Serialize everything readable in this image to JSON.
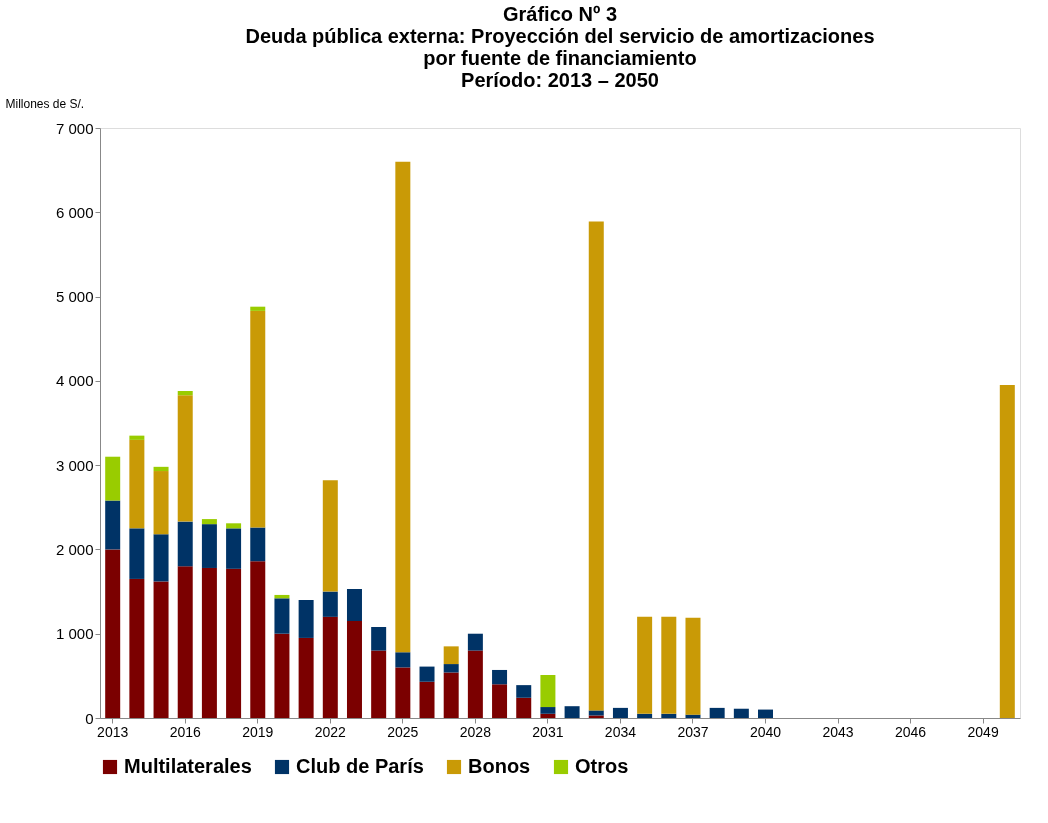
{
  "chart_data": {
    "type": "bar",
    "stacked": true,
    "title": "Gráfico Nº 3\nDeuda pública externa: Proyección del servicio de amortizaciones\npor fuente de financiamiento\nPeríodo: 2013 – 2050",
    "ylabel": "Millones de S/.",
    "categories": [
      "2013",
      null,
      null,
      "2016",
      null,
      null,
      "2019",
      null,
      null,
      "2022",
      null,
      null,
      "2025",
      null,
      null,
      "2028",
      null,
      null,
      "2031",
      null,
      null,
      "2034",
      null,
      null,
      "2037",
      null,
      null,
      "2040",
      null,
      null,
      "2043",
      null,
      null,
      "2046",
      null,
      null,
      "2049",
      null
    ],
    "series": [
      {
        "name": "Multilaterales",
        "color": "#7b0000",
        "values": [
          2000,
          1650,
          1620,
          1800,
          1780,
          1770,
          1860,
          1000,
          950,
          1200,
          1150,
          800,
          600,
          430,
          540,
          800,
          400,
          240,
          50,
          null,
          30,
          null,
          null,
          null,
          null,
          null,
          null,
          null,
          null,
          null,
          null,
          null,
          null,
          null,
          null,
          null,
          null,
          null
        ]
      },
      {
        "name": "Club de París",
        "color": "#003366",
        "values": [
          580,
          600,
          560,
          530,
          520,
          480,
          400,
          420,
          450,
          300,
          380,
          280,
          180,
          180,
          100,
          200,
          170,
          150,
          80,
          140,
          60,
          120,
          50,
          50,
          40,
          120,
          110,
          100,
          null,
          null,
          null,
          null,
          null,
          null,
          null,
          null,
          null,
          null
        ]
      },
      {
        "name": "Bonos",
        "color": "#c99a06",
        "values": [
          null,
          1050,
          750,
          1500,
          null,
          null,
          2570,
          null,
          null,
          1320,
          null,
          null,
          5820,
          null,
          210,
          null,
          null,
          null,
          null,
          null,
          5800,
          null,
          1150,
          1150,
          1150,
          null,
          null,
          null,
          null,
          null,
          null,
          null,
          null,
          null,
          null,
          null,
          null,
          3950
        ]
      },
      {
        "name": "Otros",
        "color": "#99cc00",
        "values": [
          520,
          50,
          50,
          50,
          60,
          60,
          50,
          40,
          null,
          null,
          null,
          null,
          null,
          null,
          null,
          null,
          null,
          null,
          380,
          null,
          null,
          null,
          null,
          null,
          null,
          null,
          null,
          null,
          null,
          null,
          null,
          null,
          null,
          null,
          null,
          null,
          null,
          null
        ]
      }
    ],
    "ylim": [
      0,
      7000
    ],
    "yticks": [
      0,
      {
        "value": 1000,
        "label": "1 000"
      },
      {
        "value": 2000,
        "label": "2 000"
      },
      {
        "value": 3000,
        "label": "3 000"
      },
      {
        "value": 4000,
        "label": "4 000"
      },
      {
        "value": 5000,
        "label": "5 000"
      },
      {
        "value": 6000,
        "label": "6 000"
      },
      {
        "value": 7000,
        "label": "7 000"
      }
    ],
    "legend": "bottom",
    "grid": false
  }
}
